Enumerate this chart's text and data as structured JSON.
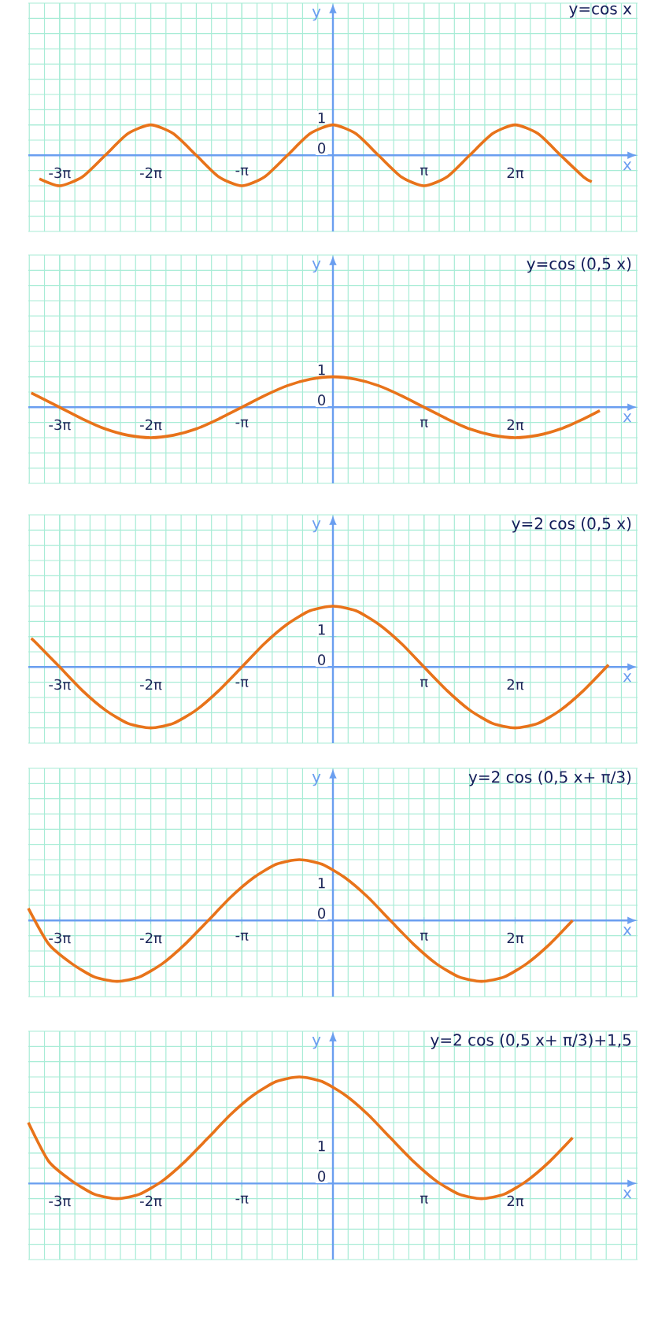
{
  "chart_data": [
    {
      "type": "line",
      "title": "y=cos x",
      "xlabel": "x",
      "ylabel": "y",
      "color": "#e8731a",
      "grid": true,
      "xlim": [
        -10.5,
        10.5
      ],
      "ylim": [
        -2.5,
        5
      ],
      "xticks": [
        {
          "value": -9.42,
          "label": "-3π"
        },
        {
          "value": -6.28,
          "label": "-2π"
        },
        {
          "value": -3.14,
          "label": "-π"
        },
        {
          "value": 3.14,
          "label": "π"
        },
        {
          "value": 6.28,
          "label": "2π"
        }
      ],
      "yticks": [
        0,
        1
      ],
      "x": [
        -10.12,
        -9.42,
        -8.64,
        -7.85,
        -7.07,
        -6.28,
        -5.5,
        -4.71,
        -3.93,
        -3.14,
        -2.36,
        -1.57,
        -0.79,
        0,
        0.79,
        1.57,
        2.36,
        3.14,
        3.93,
        4.71,
        5.5,
        6.28,
        7.07,
        7.85,
        8.64,
        8.92
      ],
      "values": [
        -0.77,
        -1,
        -0.71,
        0,
        0.71,
        1,
        0.71,
        0,
        -0.71,
        -1,
        -0.71,
        0,
        0.71,
        1,
        0.71,
        0,
        -0.71,
        -1,
        -0.71,
        0,
        0.71,
        1,
        0.71,
        0,
        -0.71,
        -0.87
      ]
    },
    {
      "type": "line",
      "title": "y=cos (0,5 x)",
      "xlabel": "x",
      "ylabel": "y",
      "color": "#e8731a",
      "grid": true,
      "xlim": [
        -10.5,
        10.5
      ],
      "ylim": [
        -2.5,
        5
      ],
      "xticks": [
        {
          "value": -9.42,
          "label": "-3π"
        },
        {
          "value": -6.28,
          "label": "-2π"
        },
        {
          "value": -3.14,
          "label": "-π"
        },
        {
          "value": 3.14,
          "label": "π"
        },
        {
          "value": 6.28,
          "label": "2π"
        }
      ],
      "yticks": [
        0,
        1
      ],
      "x": [
        -10.4,
        -10.21,
        -9.42,
        -8.64,
        -7.85,
        -7.07,
        -6.28,
        -5.5,
        -4.71,
        -3.93,
        -3.14,
        -2.36,
        -1.57,
        -0.79,
        0,
        0.79,
        1.57,
        2.36,
        3.14,
        3.93,
        4.71,
        5.5,
        6.28,
        7.07,
        7.85,
        8.64,
        9.2
      ],
      "values": [
        0.47,
        0.38,
        0,
        -0.38,
        -0.71,
        -0.92,
        -1,
        -0.92,
        -0.71,
        -0.38,
        0,
        0.38,
        0.71,
        0.92,
        1,
        0.92,
        0.71,
        0.38,
        0,
        -0.38,
        -0.71,
        -0.92,
        -1,
        -0.92,
        -0.71,
        -0.38,
        -0.11
      ]
    },
    {
      "type": "line",
      "title": "y=2 cos (0,5 x)",
      "xlabel": "x",
      "ylabel": "y",
      "color": "#e8731a",
      "grid": true,
      "xlim": [
        -10.5,
        10.5
      ],
      "ylim": [
        -2.5,
        5
      ],
      "xticks": [
        {
          "value": -9.42,
          "label": "-3π"
        },
        {
          "value": -6.28,
          "label": "-2π"
        },
        {
          "value": -3.14,
          "label": "-π"
        },
        {
          "value": 3.14,
          "label": "π"
        },
        {
          "value": 6.28,
          "label": "2π"
        }
      ],
      "yticks": [
        0,
        1
      ],
      "x": [
        -10.4,
        -10.21,
        -9.42,
        -8.64,
        -7.85,
        -7.07,
        -6.28,
        -5.5,
        -4.71,
        -3.93,
        -3.14,
        -2.36,
        -1.57,
        -0.79,
        0,
        0.79,
        1.57,
        2.36,
        3.14,
        3.93,
        4.71,
        5.5,
        6.28,
        7.07,
        7.85,
        8.64,
        9.5
      ],
      "values": [
        0.94,
        0.77,
        0,
        -0.77,
        -1.41,
        -1.85,
        -2,
        -1.85,
        -1.41,
        -0.77,
        0,
        0.77,
        1.41,
        1.85,
        2,
        1.85,
        1.41,
        0.77,
        0,
        -0.77,
        -1.41,
        -1.85,
        -2,
        -1.85,
        -1.41,
        -0.77,
        0.07
      ]
    },
    {
      "type": "line",
      "title": "y=2 cos (0,5 x+ π/3)",
      "xlabel": "x",
      "ylabel": "y",
      "color": "#e8731a",
      "grid": true,
      "xlim": [
        -10.5,
        10.5
      ],
      "ylim": [
        -2.5,
        5
      ],
      "xticks": [
        {
          "value": -9.42,
          "label": "-3π"
        },
        {
          "value": -6.28,
          "label": "-2π"
        },
        {
          "value": -3.14,
          "label": "-π"
        },
        {
          "value": 3.14,
          "label": "π"
        },
        {
          "value": 6.28,
          "label": "2π"
        }
      ],
      "yticks": [
        0,
        1
      ],
      "x": [
        -10.5,
        -9.8,
        -9.01,
        -8.23,
        -7.44,
        -6.66,
        -5.87,
        -5.09,
        -4.3,
        -3.52,
        -2.73,
        -1.95,
        -1.16,
        -0.38,
        0.41,
        1.2,
        1.98,
        2.77,
        3.55,
        4.34,
        5.12,
        5.91,
        6.69,
        7.48,
        8.26
      ],
      "values": [
        0.4,
        -0.77,
        -1.41,
        -1.85,
        -2,
        -1.85,
        -1.41,
        -0.77,
        0,
        0.77,
        1.41,
        1.85,
        2,
        1.85,
        1.41,
        0.77,
        0,
        -0.77,
        -1.41,
        -1.85,
        -2,
        -1.85,
        -1.41,
        -0.77,
        0
      ]
    },
    {
      "type": "line",
      "title": "y=2 cos (0,5 x+ π/3)+1,5",
      "xlabel": "x",
      "ylabel": "y",
      "color": "#e8731a",
      "grid": true,
      "xlim": [
        -10.5,
        10.5
      ],
      "ylim": [
        -2.5,
        5
      ],
      "xticks": [
        {
          "value": -9.42,
          "label": "-3π"
        },
        {
          "value": -6.28,
          "label": "-2π"
        },
        {
          "value": -3.14,
          "label": "-π"
        },
        {
          "value": 3.14,
          "label": "π"
        },
        {
          "value": 6.28,
          "label": "2π"
        }
      ],
      "yticks": [
        0,
        1
      ],
      "x": [
        -10.5,
        -9.8,
        -9.01,
        -8.23,
        -7.44,
        -6.66,
        -5.87,
        -5.09,
        -4.3,
        -3.52,
        -2.73,
        -1.95,
        -1.16,
        -0.38,
        0.41,
        1.2,
        1.98,
        2.77,
        3.55,
        4.34,
        5.12,
        5.91,
        6.69,
        7.48,
        8.26
      ],
      "values": [
        2.0,
        0.73,
        0.09,
        -0.35,
        -0.5,
        -0.35,
        0.09,
        0.73,
        1.5,
        2.27,
        2.91,
        3.35,
        3.5,
        3.35,
        2.91,
        2.27,
        1.5,
        0.73,
        0.09,
        -0.35,
        -0.5,
        -0.35,
        0.09,
        0.73,
        1.5
      ]
    }
  ]
}
